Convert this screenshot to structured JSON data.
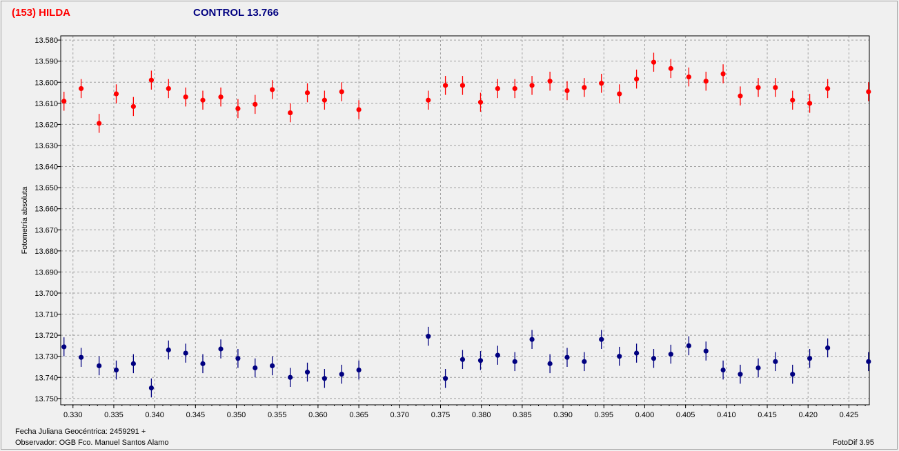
{
  "header": {
    "target_title": "(153) HILDA",
    "control_title": "CONTROL 13.766",
    "target_color": "#ff0000",
    "control_color": "#000080"
  },
  "footer": {
    "date_label": "Fecha Juliana Geocéntrica: 2459291 +",
    "observer_label": "Observador: OGB   Fco. Manuel Santos Alamo",
    "software": "FotoDif 3.95"
  },
  "chart_data": {
    "type": "scatter",
    "title": "",
    "xlabel": "",
    "ylabel": "Fotometría absoluta",
    "xlim": [
      0.3285,
      0.4275
    ],
    "ylim": [
      13.578,
      13.753
    ],
    "y_inverted": true,
    "grid": true,
    "x_ticks": [
      "0.330",
      "0.335",
      "0.340",
      "0.345",
      "0.350",
      "0.355",
      "0.360",
      "0.365",
      "0.370",
      "0.375",
      "0.380",
      "0.385",
      "0.390",
      "0.395",
      "0.400",
      "0.405",
      "0.410",
      "0.415",
      "0.420",
      "0.425"
    ],
    "y_ticks": [
      "13.580",
      "13.590",
      "13.600",
      "13.610",
      "13.620",
      "13.630",
      "13.640",
      "13.650",
      "13.660",
      "13.670",
      "13.680",
      "13.690",
      "13.700",
      "13.710",
      "13.720",
      "13.730",
      "13.740",
      "13.750"
    ],
    "series": [
      {
        "name": "(153) HILDA",
        "color": "#ff0000",
        "error": 0.0045,
        "x": [
          0.3289,
          0.331,
          0.3332,
          0.3353,
          0.3374,
          0.3396,
          0.3417,
          0.3438,
          0.3459,
          0.3481,
          0.3502,
          0.3523,
          0.3544,
          0.3566,
          0.3587,
          0.3608,
          0.3629,
          0.365,
          0.3735,
          0.3756,
          0.3777,
          0.3799,
          0.382,
          0.3841,
          0.3862,
          0.3884,
          0.3905,
          0.3926,
          0.3947,
          0.3969,
          0.399,
          0.4011,
          0.4032,
          0.4054,
          0.4075,
          0.4096,
          0.4117,
          0.4139,
          0.416,
          0.4181,
          0.4202,
          0.4224,
          0.4274
        ],
        "y": [
          13.609,
          13.603,
          13.6195,
          13.6055,
          13.6115,
          13.599,
          13.603,
          13.607,
          13.6085,
          13.607,
          13.6125,
          13.6105,
          13.6035,
          13.6145,
          13.605,
          13.6085,
          13.6045,
          13.613,
          13.6085,
          13.6015,
          13.6015,
          13.6095,
          13.603,
          13.603,
          13.6015,
          13.5995,
          13.604,
          13.6025,
          13.6005,
          13.6055,
          13.5985,
          13.5905,
          13.5935,
          13.5975,
          13.5995,
          13.596,
          13.6065,
          13.6025,
          13.6025,
          13.6085,
          13.61,
          13.603,
          13.6045
        ]
      },
      {
        "name": "CONTROL 13.766",
        "color": "#000080",
        "error": 0.0045,
        "x": [
          0.3289,
          0.331,
          0.3332,
          0.3353,
          0.3374,
          0.3396,
          0.3417,
          0.3438,
          0.3459,
          0.3481,
          0.3502,
          0.3523,
          0.3544,
          0.3566,
          0.3587,
          0.3608,
          0.3629,
          0.365,
          0.3735,
          0.3756,
          0.3777,
          0.3799,
          0.382,
          0.3841,
          0.3862,
          0.3884,
          0.3905,
          0.3926,
          0.3947,
          0.3969,
          0.399,
          0.4011,
          0.4032,
          0.4054,
          0.4075,
          0.4096,
          0.4117,
          0.4139,
          0.416,
          0.4181,
          0.4202,
          0.4224,
          0.4274
        ],
        "y": [
          13.7255,
          13.7305,
          13.7345,
          13.7365,
          13.7335,
          13.745,
          13.727,
          13.7285,
          13.7335,
          13.7265,
          13.731,
          13.7355,
          13.7345,
          13.74,
          13.7375,
          13.7405,
          13.7385,
          13.7365,
          13.7205,
          13.7405,
          13.7315,
          13.732,
          13.7295,
          13.7325,
          13.722,
          13.7335,
          13.7305,
          13.7325,
          13.722,
          13.73,
          13.7285,
          13.731,
          13.729,
          13.725,
          13.7275,
          13.7365,
          13.7385,
          13.7355,
          13.7325,
          13.7385,
          13.731,
          13.726,
          13.7325
        ]
      }
    ]
  }
}
